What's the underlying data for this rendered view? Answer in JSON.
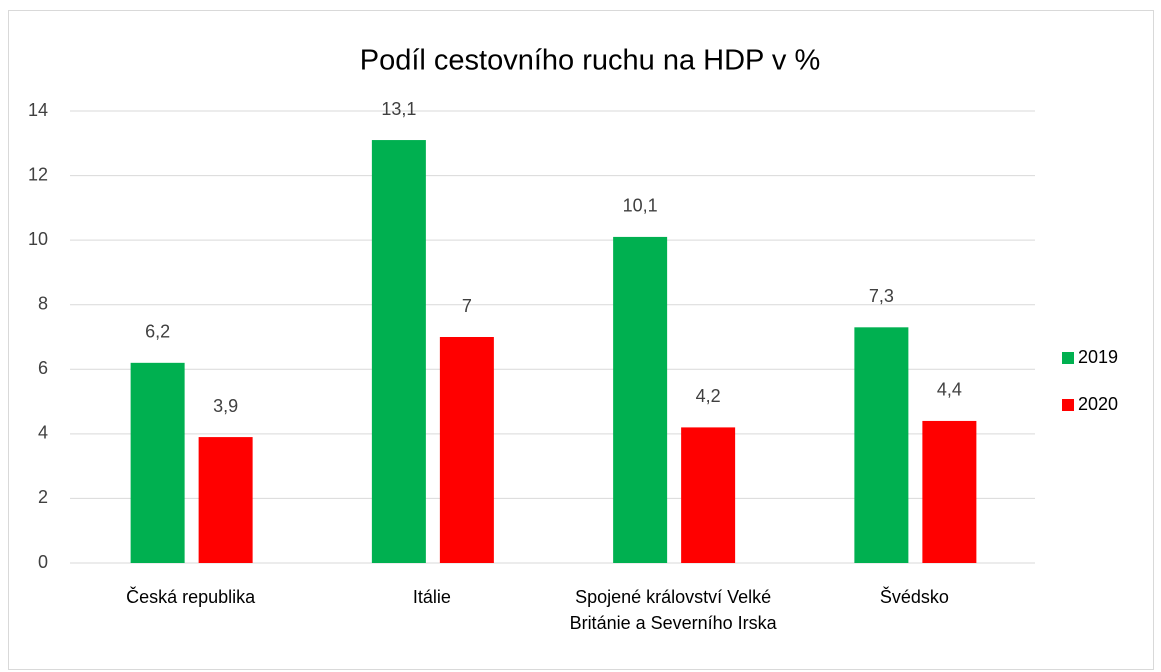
{
  "chart_data": {
    "type": "bar",
    "title": "Podíl cestovního ruchu na HDP v %",
    "categories": [
      "Česká republika",
      "Itálie",
      "Spojené království Velké Británie a Severního Irska",
      "Švédsko"
    ],
    "series": [
      {
        "name": "2019",
        "color": "#00b050",
        "values": [
          6.2,
          13.1,
          10.1,
          7.3
        ],
        "value_labels": [
          "6,2",
          "13,1",
          "10,1",
          "7,3"
        ]
      },
      {
        "name": "2020",
        "color": "#ff0000",
        "values": [
          3.9,
          7,
          4.2,
          4.4
        ],
        "value_labels": [
          "3,9",
          "7",
          "4,2",
          "4,4"
        ]
      }
    ],
    "ylim": [
      0,
      14
    ],
    "yticks": [
      0,
      2,
      4,
      6,
      8,
      10,
      12,
      14
    ],
    "grid": true,
    "legend": "right"
  }
}
